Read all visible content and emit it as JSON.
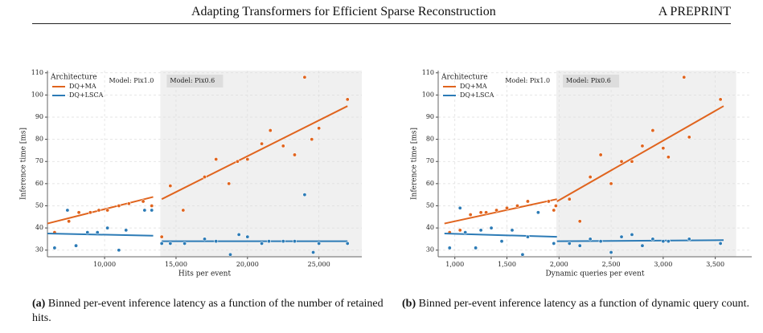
{
  "header": {
    "title": "Adapting Transformers for Efficient Sparse Reconstruction",
    "right": "A PREPRINT"
  },
  "chart_data": [
    {
      "type": "scatter",
      "xlabel": "Hits per event",
      "ylabel": "Inference time [ms]",
      "legend_title": "Architecture",
      "legend": "upper left",
      "grid": true,
      "xlim": [
        6000,
        28000
      ],
      "ylim": [
        27,
        111
      ],
      "xticks": [
        {
          "value": 10000,
          "label": "10,000"
        },
        {
          "value": 15000,
          "label": "15,000"
        },
        {
          "value": 20000,
          "label": "20,000"
        },
        {
          "value": 25000,
          "label": "25,000"
        }
      ],
      "yticks": [
        30,
        40,
        50,
        60,
        70,
        80,
        90,
        100,
        110
      ],
      "regions": [
        {
          "label": "Model: Pix1.0"
        },
        {
          "label": "Model: Pix0.6",
          "shaded": [
            13900,
            28000
          ]
        }
      ],
      "series": [
        {
          "name": "DQ+MA",
          "color": "#e0641e",
          "x": [
            6500,
            7500,
            8200,
            9000,
            9600,
            10200,
            11000,
            11700,
            12700,
            13300,
            14000,
            14600,
            15500,
            17000,
            17800,
            18700,
            19300,
            20000,
            21000,
            21600,
            22500,
            23300,
            24000,
            24500,
            25000,
            27000
          ],
          "values": [
            38,
            43,
            47,
            47,
            48,
            48,
            50,
            51,
            52,
            50,
            36,
            59,
            48,
            63,
            71,
            60,
            70,
            71,
            78,
            84,
            77,
            73,
            108,
            80,
            85,
            98
          ],
          "fits": [
            {
              "x": [
                6000,
                13400
              ],
              "values": [
                42,
                54
              ]
            },
            {
              "x": [
                14000,
                27000
              ],
              "values": [
                53,
                95
              ]
            }
          ]
        },
        {
          "name": "DQ+LSCA",
          "color": "#2c7bb6",
          "x": [
            6500,
            7400,
            8000,
            8800,
            9500,
            10200,
            11000,
            11500,
            12800,
            13300,
            14000,
            14600,
            15600,
            17000,
            17800,
            18800,
            19400,
            20000,
            21000,
            21500,
            22500,
            23300,
            24000,
            24600,
            25000,
            27000
          ],
          "values": [
            31,
            48,
            32,
            38,
            38,
            40,
            30,
            39,
            48,
            48,
            33,
            33,
            33,
            35,
            34,
            28,
            37,
            36,
            33,
            34,
            34,
            34,
            55,
            29,
            33,
            33
          ],
          "fits": [
            {
              "x": [
                6000,
                13400
              ],
              "values": [
                37.5,
                36.5
              ]
            },
            {
              "x": [
                14000,
                27000
              ],
              "values": [
                34,
                34
              ]
            }
          ]
        }
      ],
      "caption": {
        "label": "(a)",
        "text": "Binned per-event inference latency as a function of the number of retained hits."
      }
    },
    {
      "type": "scatter",
      "xlabel": "Dynamic queries per event",
      "ylabel": "Inference time [ms]",
      "legend_title": "Architecture",
      "legend": "upper left",
      "grid": true,
      "xlim": [
        840,
        3850
      ],
      "ylim": [
        27,
        111
      ],
      "xticks": [
        {
          "value": 1000,
          "label": "1,000"
        },
        {
          "value": 1500,
          "label": "1,500"
        },
        {
          "value": 2000,
          "label": "2,000"
        },
        {
          "value": 2500,
          "label": "2,500"
        },
        {
          "value": 3000,
          "label": "3,000"
        },
        {
          "value": 3500,
          "label": "3,500"
        }
      ],
      "yticks": [
        30,
        40,
        50,
        60,
        70,
        80,
        90,
        100,
        110
      ],
      "regions": [
        {
          "label": "Model: Pix1.0"
        },
        {
          "label": "Model: Pix0.6",
          "shaded": [
            1975,
            3700
          ]
        }
      ],
      "series": [
        {
          "name": "DQ+MA",
          "color": "#e0641e",
          "x": [
            950,
            1050,
            1150,
            1250,
            1300,
            1400,
            1500,
            1600,
            1700,
            1900,
            1950,
            1970,
            2100,
            2200,
            2300,
            2400,
            2500,
            2600,
            2700,
            2800,
            2900,
            3000,
            3050,
            3200,
            3250,
            3550
          ],
          "values": [
            38,
            39,
            46,
            47,
            47,
            48,
            49,
            50,
            52,
            52,
            48,
            50,
            53,
            43,
            63,
            73,
            60,
            70,
            70,
            77,
            84,
            76,
            72,
            108,
            81,
            98
          ],
          "fits": [
            {
              "x": [
                900,
                1980
              ],
              "values": [
                42,
                53
              ]
            },
            {
              "x": [
                1980,
                3580
              ],
              "values": [
                52,
                95
              ]
            }
          ]
        },
        {
          "name": "DQ+LSCA",
          "color": "#2c7bb6",
          "x": [
            950,
            1050,
            1100,
            1200,
            1250,
            1350,
            1450,
            1550,
            1650,
            1700,
            1800,
            1950,
            2100,
            2200,
            2300,
            2400,
            2500,
            2600,
            2700,
            2800,
            2900,
            3000,
            3050,
            3250,
            3550
          ],
          "values": [
            31,
            49,
            38,
            31,
            39,
            40,
            34,
            39,
            28,
            36,
            47,
            33,
            33,
            32,
            35,
            34,
            29,
            36,
            37,
            32,
            35,
            34,
            34,
            35,
            33
          ],
          "fits": [
            {
              "x": [
                900,
                1980
              ],
              "values": [
                37.5,
                36
              ]
            },
            {
              "x": [
                1980,
                3580
              ],
              "values": [
                34,
                34.5
              ]
            }
          ]
        }
      ],
      "caption": {
        "label": "(b)",
        "text": "Binned per-event inference latency as a function of dynamic query count."
      }
    }
  ]
}
